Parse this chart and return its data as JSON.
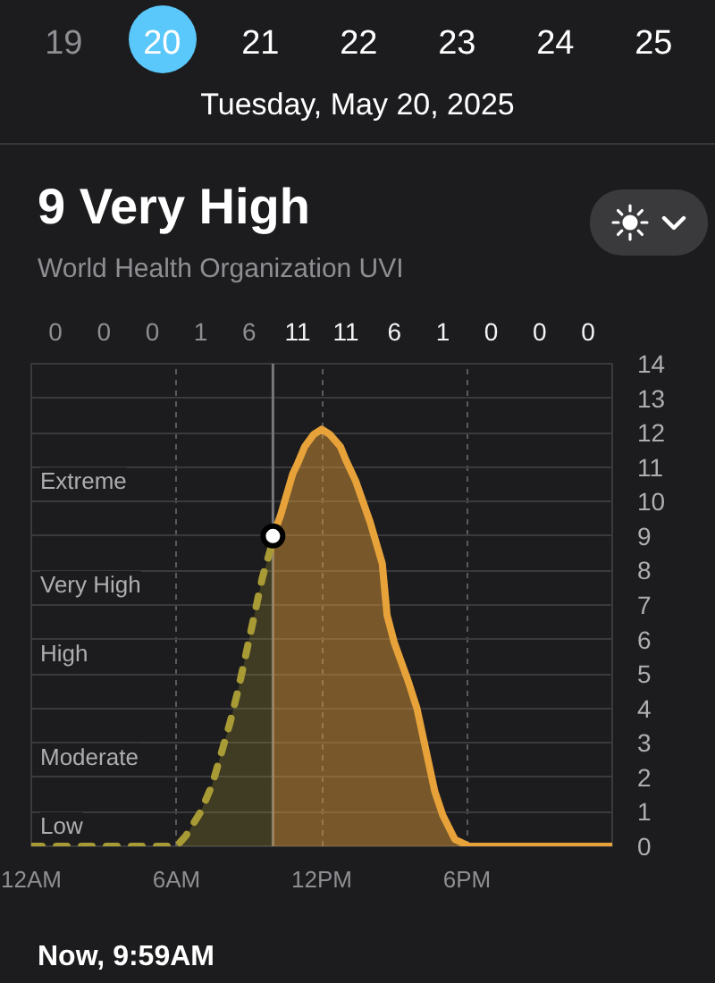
{
  "chart_data": {
    "type": "area",
    "title": "9 Very High",
    "subtitle": "World Health Organization UVI",
    "annotations": [
      "19",
      "20",
      "21",
      "22",
      "23",
      "24",
      "25",
      "Tuesday, May 20, 2025",
      "0",
      "0",
      "0",
      "1",
      "6",
      "11",
      "11",
      "6",
      "1",
      "0",
      "0",
      "0",
      "Extreme",
      "Very High",
      "High",
      "Moderate",
      "Low",
      "Now, 9:59AM"
    ],
    "xlim": [
      "2025-05-20T00:00",
      "2025-05-21T00:00"
    ],
    "xticks": [
      {
        "value": "2025-05-20T00:00",
        "label": "12AM"
      },
      {
        "value": "2025-05-20T06:00",
        "label": "6AM"
      },
      {
        "value": "2025-05-20T12:00",
        "label": "12PM"
      },
      {
        "value": "2025-05-20T18:00",
        "label": "6PM"
      }
    ],
    "ylim": [
      0,
      14
    ],
    "yticks": [
      0,
      1,
      2,
      3,
      4,
      5,
      6,
      7,
      8,
      9,
      10,
      11,
      12,
      13,
      14
    ],
    "grid": true,
    "ref_lines": [
      {
        "axis": "x",
        "value": "2025-05-20T09:59"
      }
    ],
    "series": [
      {
        "color": "#a89a34",
        "line_style": "dashed",
        "x": [
          "2025-05-20T00:00",
          "2025-05-20T06:00",
          "2025-05-20T06:23",
          "2025-05-20T07:00",
          "2025-05-20T07:29",
          "2025-05-20T07:51",
          "2025-05-20T08:13",
          "2025-05-20T08:32",
          "2025-05-20T08:49",
          "2025-05-20T09:00",
          "2025-05-20T09:11",
          "2025-05-20T09:33",
          "2025-05-20T09:55",
          "2025-05-20T09:59"
        ],
        "values": [
          0,
          0,
          0.3,
          1,
          1.8,
          2.7,
          3.6,
          4.5,
          5.4,
          6,
          6.6,
          7.8,
          8.7,
          9
        ]
      },
      {
        "color": "#e8a23a",
        "line_style": "solid",
        "x": [
          "2025-05-20T09:59",
          "2025-05-20T10:18",
          "2025-05-20T10:48",
          "2025-05-20T11:00",
          "2025-05-20T11:18",
          "2025-05-20T11:40",
          "2025-05-20T12:00",
          "2025-05-20T12:20",
          "2025-05-20T12:46",
          "2025-05-20T13:00",
          "2025-05-20T13:24",
          "2025-05-20T14:00",
          "2025-05-20T14:30",
          "2025-05-20T14:42",
          "2025-05-20T15:00",
          "2025-05-20T15:34",
          "2025-05-20T15:56",
          "2025-05-20T16:18",
          "2025-05-20T16:40",
          "2025-05-20T17:00",
          "2025-05-20T17:30",
          "2025-05-20T18:06",
          "2025-05-21T00:00"
        ],
        "values": [
          9,
          9.6,
          10.8,
          11.1,
          11.6,
          11.95,
          12.1,
          11.95,
          11.6,
          11.2,
          10.6,
          9.4,
          8.2,
          6.7,
          5.9,
          4.8,
          4,
          2.8,
          1.6,
          0.9,
          0.2,
          0,
          0
        ]
      },
      {
        "type": "scatter",
        "marker": "circle",
        "color": "#ffffff",
        "x": [
          "2025-05-20T09:59"
        ],
        "values": [
          9
        ]
      }
    ]
  }
}
